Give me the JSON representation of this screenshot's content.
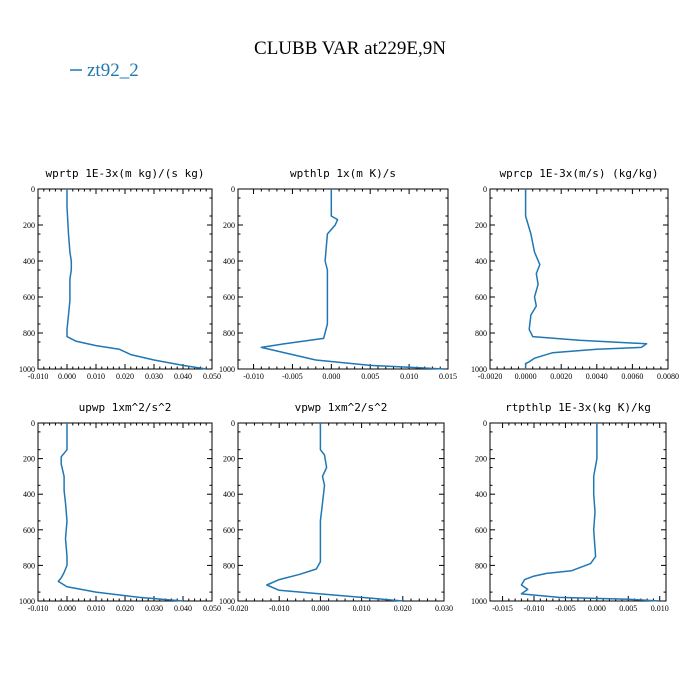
{
  "title": "CLUBB VAR at229E,9N",
  "legend": {
    "label": "zt92_2",
    "color": "#1f77b4"
  },
  "chart_data": [
    {
      "type": "line",
      "title": "wprtp  1E-3x(m kg)/(s kg)",
      "series": [
        {
          "name": "zt92_2",
          "color": "#1f77b4"
        }
      ],
      "xlim": [
        -0.01,
        0.05
      ],
      "ylim": [
        1000,
        0
      ],
      "xticks": [
        "-0.010",
        "0.000",
        "0.010",
        "0.020",
        "0.030",
        "0.040",
        "0.050"
      ],
      "yticks": [
        "0",
        "200",
        "400",
        "600",
        "800",
        "1000"
      ],
      "x": [
        0.0,
        0.0,
        0.0005,
        0.001,
        0.0015,
        0.0015,
        0.001,
        0.001,
        0.001,
        0.0005,
        0.0,
        0.0,
        0.003,
        0.01,
        0.018,
        0.022,
        0.03,
        0.04,
        0.048
      ],
      "y": [
        0,
        100,
        250,
        350,
        400,
        450,
        500,
        560,
        620,
        700,
        780,
        820,
        845,
        870,
        890,
        920,
        950,
        980,
        1000
      ]
    },
    {
      "type": "line",
      "title": "wpthlp  1x(m K)/s",
      "series": [
        {
          "name": "zt92_2",
          "color": "#1f77b4"
        }
      ],
      "xlim": [
        -0.012,
        0.015
      ],
      "ylim": [
        1000,
        0
      ],
      "xticks": [
        "-0.010",
        "-0.005",
        "0.000",
        "0.005",
        "0.010",
        "0.015"
      ],
      "yticks": [
        "0",
        "200",
        "400",
        "600",
        "800",
        "1000"
      ],
      "x": [
        0.0,
        0.0,
        0.0008,
        0.0005,
        -0.0005,
        -0.0008,
        -0.0005,
        -0.0005,
        -0.0005,
        -0.0005,
        -0.001,
        -0.006,
        -0.009,
        -0.007,
        -0.002,
        0.005,
        0.0145
      ],
      "y": [
        0,
        150,
        170,
        200,
        250,
        400,
        450,
        550,
        650,
        750,
        830,
        860,
        880,
        900,
        950,
        980,
        1000
      ]
    },
    {
      "type": "line",
      "title": "wprcp  1E-3x(m/s) (kg/kg)",
      "series": [
        {
          "name": "zt92_2",
          "color": "#1f77b4"
        }
      ],
      "xlim": [
        -0.002,
        0.008
      ],
      "ylim": [
        1000,
        0
      ],
      "xticks": [
        "-0.0020",
        "0.0000",
        "0.0020",
        "0.0040",
        "0.0060",
        "0.0080"
      ],
      "yticks": [
        "0",
        "200",
        "400",
        "600",
        "800",
        "1000"
      ],
      "x": [
        0.0,
        0.0,
        0.0003,
        0.0005,
        0.0008,
        0.0006,
        0.0007,
        0.0005,
        0.0006,
        0.0003,
        0.0002,
        0.0004,
        0.003,
        0.0068,
        0.0065,
        0.004,
        0.0015,
        0.0005,
        0.0002,
        0.0,
        0.0
      ],
      "y": [
        0,
        150,
        250,
        350,
        420,
        470,
        530,
        600,
        650,
        700,
        780,
        820,
        840,
        860,
        880,
        890,
        910,
        940,
        960,
        970,
        1000
      ]
    },
    {
      "type": "line",
      "title": "upwp  1xm^2/s^2",
      "series": [
        {
          "name": "zt92_2",
          "color": "#1f77b4"
        }
      ],
      "xlim": [
        -0.01,
        0.05
      ],
      "ylim": [
        1000,
        0
      ],
      "xticks": [
        "-0.010",
        "0.000",
        "0.010",
        "0.020",
        "0.030",
        "0.040",
        "0.050"
      ],
      "yticks": [
        "0",
        "200",
        "400",
        "600",
        "800",
        "1000"
      ],
      "x": [
        0.0,
        0.0,
        -0.001,
        -0.002,
        -0.002,
        -0.001,
        -0.001,
        -0.0005,
        0.0,
        -0.0005,
        0.0,
        0.0,
        -0.001,
        -0.002,
        -0.003,
        0.0,
        0.01,
        0.025,
        0.04
      ],
      "y": [
        0,
        150,
        170,
        190,
        230,
        300,
        380,
        450,
        550,
        650,
        750,
        800,
        840,
        870,
        890,
        920,
        950,
        980,
        1000
      ]
    },
    {
      "type": "line",
      "title": "vpwp  1xm^2/s^2",
      "series": [
        {
          "name": "zt92_2",
          "color": "#1f77b4"
        }
      ],
      "xlim": [
        -0.02,
        0.03
      ],
      "ylim": [
        1000,
        0
      ],
      "xticks": [
        "-0.020",
        "-0.010",
        "0.000",
        "0.010",
        "0.020",
        "0.030"
      ],
      "yticks": [
        "0",
        "200",
        "400",
        "600",
        "800",
        "1000"
      ],
      "x": [
        0.0,
        0.0,
        0.001,
        0.0015,
        0.0005,
        0.001,
        0.0005,
        0.0,
        0.0,
        0.0,
        -0.001,
        -0.005,
        -0.01,
        -0.013,
        -0.01,
        0.0,
        0.01,
        0.02
      ],
      "y": [
        0,
        150,
        180,
        250,
        300,
        350,
        450,
        550,
        650,
        780,
        820,
        850,
        880,
        910,
        940,
        960,
        980,
        1000
      ]
    },
    {
      "type": "line",
      "title": "rtpthlp  1E-3x(kg K)/kg",
      "series": [
        {
          "name": "zt92_2",
          "color": "#1f77b4"
        }
      ],
      "xlim": [
        -0.017,
        0.011
      ],
      "ylim": [
        1000,
        0
      ],
      "xticks": [
        "-0.015",
        "-0.010",
        "-0.005",
        "0.000",
        "0.005",
        "0.010"
      ],
      "yticks": [
        "0",
        "200",
        "400",
        "600",
        "800",
        "1000"
      ],
      "x": [
        0.0,
        0.0,
        -0.0005,
        -0.0005,
        -0.0003,
        -0.0005,
        -0.0002,
        -0.001,
        -0.004,
        -0.008,
        -0.01,
        -0.0115,
        -0.012,
        -0.011,
        -0.012,
        -0.006,
        0.005,
        0.01
      ],
      "y": [
        0,
        200,
        300,
        400,
        500,
        600,
        750,
        790,
        830,
        845,
        860,
        880,
        910,
        935,
        960,
        980,
        990,
        1000
      ]
    }
  ]
}
